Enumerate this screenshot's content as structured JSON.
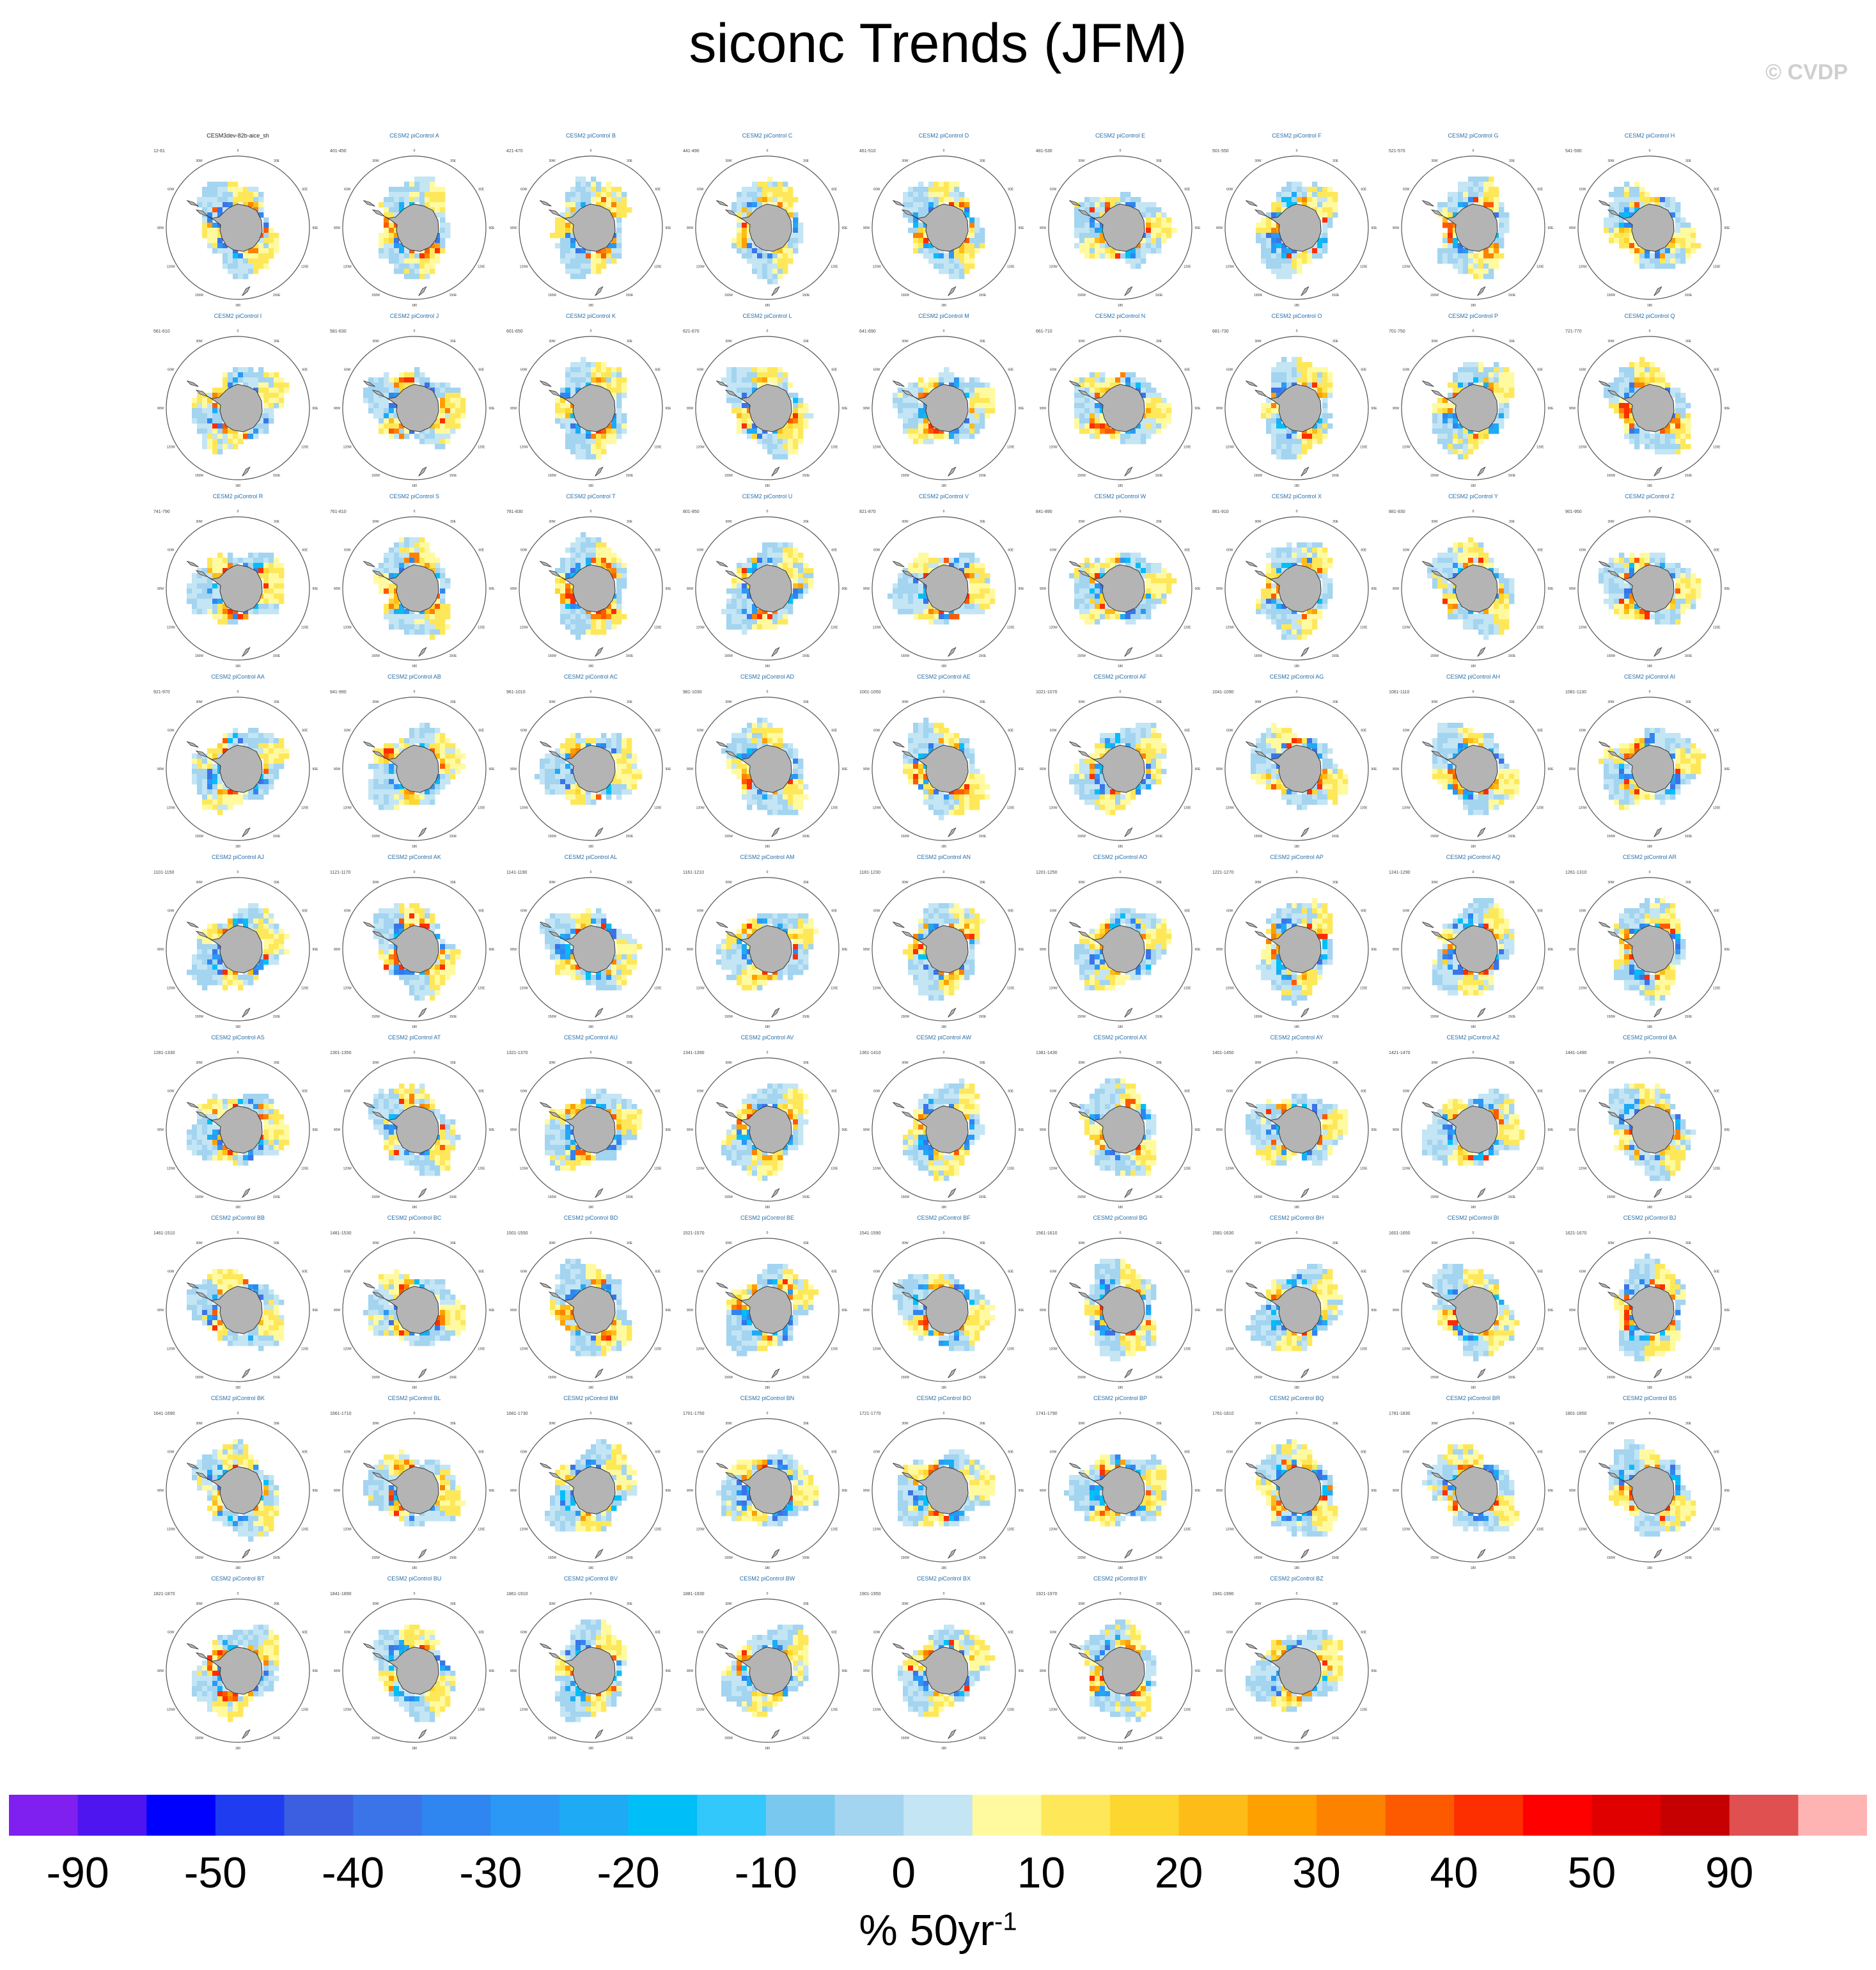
{
  "title": "siconc Trends (JFM)",
  "copyright": "© CVDP",
  "units": {
    "base": "% 50yr",
    "exponent": "-1"
  },
  "icons": {
    "continent": "antarctica-map",
    "ring": "polar-stereographic-frame"
  },
  "colors": {
    "land": "#b4b4b4",
    "coast": "#333333",
    "ring": "#555555"
  },
  "chart_data": {
    "type": "heatmap",
    "projection": "south-polar-stereographic",
    "variable": "siconc",
    "season": "JFM",
    "ring_labels": [
      "0",
      "30E",
      "60E",
      "90E",
      "120E",
      "150E",
      "180",
      "150W",
      "120W",
      "90W",
      "60W",
      "30W"
    ],
    "panels": [
      {
        "name": "CESM3dev-82b-aice_sh",
        "years": "12-61"
      },
      {
        "name": "CESM2 piControl A",
        "years": "401-450"
      },
      {
        "name": "CESM2 piControl B",
        "years": "421-470"
      },
      {
        "name": "CESM2 piControl C",
        "years": "441-490"
      },
      {
        "name": "CESM2 piControl D",
        "years": "461-510"
      },
      {
        "name": "CESM2 piControl E",
        "years": "481-530"
      },
      {
        "name": "CESM2 piControl F",
        "years": "501-550"
      },
      {
        "name": "CESM2 piControl G",
        "years": "521-570"
      },
      {
        "name": "CESM2 piControl H",
        "years": "541-590"
      },
      {
        "name": "CESM2 piControl I",
        "years": "561-610"
      },
      {
        "name": "CESM2 piControl J",
        "years": "581-630"
      },
      {
        "name": "CESM2 piControl K",
        "years": "601-650"
      },
      {
        "name": "CESM2 piControl L",
        "years": "621-670"
      },
      {
        "name": "CESM2 piControl M",
        "years": "641-690"
      },
      {
        "name": "CESM2 piControl N",
        "years": "661-710"
      },
      {
        "name": "CESM2 piControl O",
        "years": "681-730"
      },
      {
        "name": "CESM2 piControl P",
        "years": "701-750"
      },
      {
        "name": "CESM2 piControl Q",
        "years": "721-770"
      },
      {
        "name": "CESM2 piControl R",
        "years": "741-790"
      },
      {
        "name": "CESM2 piControl S",
        "years": "761-810"
      },
      {
        "name": "CESM2 piControl T",
        "years": "781-830"
      },
      {
        "name": "CESM2 piControl U",
        "years": "801-850"
      },
      {
        "name": "CESM2 piControl V",
        "years": "821-870"
      },
      {
        "name": "CESM2 piControl W",
        "years": "841-890"
      },
      {
        "name": "CESM2 piControl X",
        "years": "861-910"
      },
      {
        "name": "CESM2 piControl Y",
        "years": "881-930"
      },
      {
        "name": "CESM2 piControl Z",
        "years": "901-950"
      },
      {
        "name": "CESM2 piControl AA",
        "years": "921-970"
      },
      {
        "name": "CESM2 piControl AB",
        "years": "941-990"
      },
      {
        "name": "CESM2 piControl AC",
        "years": "961-1010"
      },
      {
        "name": "CESM2 piControl AD",
        "years": "981-1030"
      },
      {
        "name": "CESM2 piControl AE",
        "years": "1001-1050"
      },
      {
        "name": "CESM2 piControl AF",
        "years": "1021-1070"
      },
      {
        "name": "CESM2 piControl AG",
        "years": "1041-1090"
      },
      {
        "name": "CESM2 piControl AH",
        "years": "1061-1110"
      },
      {
        "name": "CESM2 piControl AI",
        "years": "1081-1130"
      },
      {
        "name": "CESM2 piControl AJ",
        "years": "1101-1150"
      },
      {
        "name": "CESM2 piControl AK",
        "years": "1121-1170"
      },
      {
        "name": "CESM2 piControl AL",
        "years": "1141-1190"
      },
      {
        "name": "CESM2 piControl AM",
        "years": "1161-1210"
      },
      {
        "name": "CESM2 piControl AN",
        "years": "1181-1230"
      },
      {
        "name": "CESM2 piControl AO",
        "years": "1201-1250"
      },
      {
        "name": "CESM2 piControl AP",
        "years": "1221-1270"
      },
      {
        "name": "CESM2 piControl AQ",
        "years": "1241-1290"
      },
      {
        "name": "CESM2 piControl AR",
        "years": "1261-1310"
      },
      {
        "name": "CESM2 piControl AS",
        "years": "1281-1330"
      },
      {
        "name": "CESM2 piControl AT",
        "years": "1301-1350"
      },
      {
        "name": "CESM2 piControl AU",
        "years": "1321-1370"
      },
      {
        "name": "CESM2 piControl AV",
        "years": "1341-1390"
      },
      {
        "name": "CESM2 piControl AW",
        "years": "1361-1410"
      },
      {
        "name": "CESM2 piControl AX",
        "years": "1381-1430"
      },
      {
        "name": "CESM2 piControl AY",
        "years": "1401-1450"
      },
      {
        "name": "CESM2 piControl AZ",
        "years": "1421-1470"
      },
      {
        "name": "CESM2 piControl BA",
        "years": "1441-1490"
      },
      {
        "name": "CESM2 piControl BB",
        "years": "1461-1510"
      },
      {
        "name": "CESM2 piControl BC",
        "years": "1481-1530"
      },
      {
        "name": "CESM2 piControl BD",
        "years": "1501-1550"
      },
      {
        "name": "CESM2 piControl BE",
        "years": "1521-1570"
      },
      {
        "name": "CESM2 piControl BF",
        "years": "1541-1590"
      },
      {
        "name": "CESM2 piControl BG",
        "years": "1561-1610"
      },
      {
        "name": "CESM2 piControl BH",
        "years": "1581-1630"
      },
      {
        "name": "CESM2 piControl BI",
        "years": "1601-1650"
      },
      {
        "name": "CESM2 piControl BJ",
        "years": "1621-1670"
      },
      {
        "name": "CESM2 piControl BK",
        "years": "1641-1690"
      },
      {
        "name": "CESM2 piControl BL",
        "years": "1661-1710"
      },
      {
        "name": "CESM2 piControl BM",
        "years": "1681-1730"
      },
      {
        "name": "CESM2 piControl BN",
        "years": "1701-1750"
      },
      {
        "name": "CESM2 piControl BO",
        "years": "1721-1770"
      },
      {
        "name": "CESM2 piControl BP",
        "years": "1741-1790"
      },
      {
        "name": "CESM2 piControl BQ",
        "years": "1761-1810"
      },
      {
        "name": "CESM2 piControl BR",
        "years": "1781-1830"
      },
      {
        "name": "CESM2 piControl BS",
        "years": "1801-1850"
      },
      {
        "name": "CESM2 piControl BT",
        "years": "1821-1870"
      },
      {
        "name": "CESM2 piControl BU",
        "years": "1841-1890"
      },
      {
        "name": "CESM2 piControl BV",
        "years": "1861-1910"
      },
      {
        "name": "CESM2 piControl BW",
        "years": "1881-1930"
      },
      {
        "name": "CESM2 piControl BX",
        "years": "1901-1950"
      },
      {
        "name": "CESM2 piControl BY",
        "years": "1921-1970"
      },
      {
        "name": "CESM2 piControl BZ",
        "years": "1941-1990"
      }
    ],
    "colorbar": {
      "labels": [
        "-90",
        "-50",
        "-40",
        "-30",
        "-20",
        "-10",
        "0",
        "10",
        "20",
        "30",
        "40",
        "50",
        "90"
      ],
      "levels": [
        -90,
        -70,
        -50,
        -45,
        -40,
        -35,
        -30,
        -25,
        -20,
        -15,
        -10,
        -5,
        0,
        5,
        10,
        15,
        20,
        25,
        30,
        35,
        40,
        45,
        50,
        70,
        90
      ],
      "colors": [
        "#7f1ff0",
        "#4e15f0",
        "#0000ff",
        "#1f3cf0",
        "#3c5ee0",
        "#3a74e8",
        "#2f86f0",
        "#2c98f5",
        "#1eaaf5",
        "#00bff8",
        "#33c8fb",
        "#78c8f0",
        "#a3d4f0",
        "#c3e5f4",
        "#fffaa0",
        "#fee85a",
        "#fdd630",
        "#fdbc18",
        "#fda000",
        "#fd8200",
        "#fd5a00",
        "#fd2e00",
        "#ff0000",
        "#e00000",
        "#c60000",
        "#e05050",
        "#ffb4b4"
      ]
    }
  }
}
